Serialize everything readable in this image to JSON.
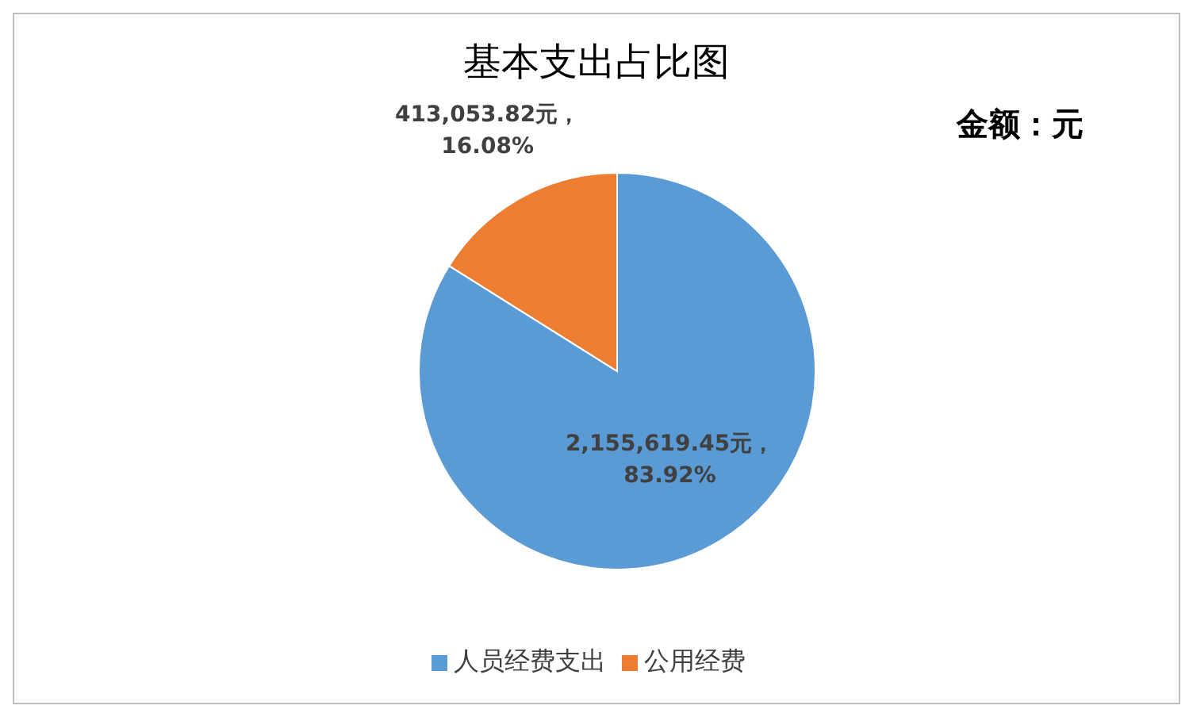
{
  "chart_data": {
    "type": "pie",
    "title": "基本支出占比图",
    "subtitle": "金额：元",
    "categories": [
      "人员经费支出",
      "公用经费"
    ],
    "values": [
      2155619.45,
      413053.82
    ],
    "colors": [
      "#5b9bd5",
      "#ed7d31"
    ],
    "value_labels": [
      "2,155,619.45元，\n83.92%",
      "413,053.82元，\n16.08%"
    ],
    "legend": "bottom"
  }
}
